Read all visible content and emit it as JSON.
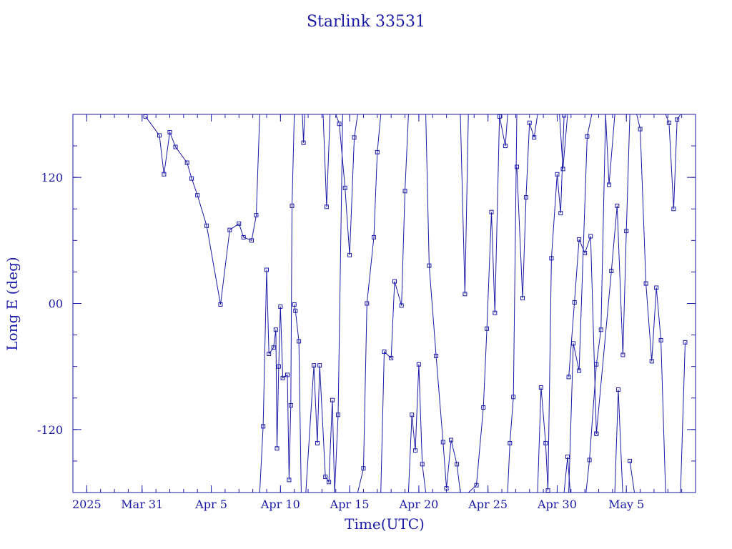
{
  "chart_data": {
    "type": "line",
    "title": "Starlink 33531",
    "xlabel": "Time(UTC)",
    "ylabel": "Long E (deg)",
    "x_unit": "date 2025 (UTC)",
    "xlim": [
      "2025-03-26",
      "2025-05-10"
    ],
    "ylim": [
      -180,
      180
    ],
    "x_tick_labels": [
      {
        "date": "2025-03-27",
        "label": "2025"
      },
      {
        "date": "2025-03-31",
        "label": "Mar 31"
      },
      {
        "date": "2025-04-05",
        "label": "Apr  5"
      },
      {
        "date": "2025-04-10",
        "label": "Apr 10"
      },
      {
        "date": "2025-04-15",
        "label": "Apr 15"
      },
      {
        "date": "2025-04-20",
        "label": "Apr 20"
      },
      {
        "date": "2025-04-25",
        "label": "Apr 25"
      },
      {
        "date": "2025-04-30",
        "label": "Apr 30"
      },
      {
        "date": "2025-05-05",
        "label": "May  5"
      }
    ],
    "y_tick_labels": [
      {
        "value": 120,
        "label": "120"
      },
      {
        "value": 0,
        "label": "00"
      },
      {
        "value": -120,
        "label": "-120"
      }
    ],
    "grid": false,
    "line_color": "#1a1aa6",
    "series": [
      {
        "points": [
          [
            "2025-03-31T06:00",
            178
          ],
          [
            "2025-04-01T06:00",
            160
          ],
          [
            "2025-04-01T14:00",
            123
          ],
          [
            "2025-04-02T00:00",
            163
          ],
          [
            "2025-04-02T10:00",
            149
          ],
          [
            "2025-04-03T06:00",
            134
          ],
          [
            "2025-04-03T14:00",
            119
          ],
          [
            "2025-04-04T00:00",
            103
          ],
          [
            "2025-04-04T16:00",
            74
          ],
          [
            "2025-04-05T16:00",
            -1
          ],
          [
            "2025-04-06T08:00",
            70
          ],
          [
            "2025-04-07T00:00",
            76
          ],
          [
            "2025-04-07T08:00",
            63
          ],
          [
            "2025-04-07T22:00",
            60
          ],
          [
            "2025-04-08T06:00",
            84
          ],
          [
            "2025-04-08T12:00",
            180
          ]
        ]
      },
      {
        "points": [
          [
            "2025-04-08T12:00",
            -180
          ],
          [
            "2025-04-08T18:00",
            -117
          ],
          [
            "2025-04-09T00:00",
            32
          ],
          [
            "2025-04-09T04:00",
            -48
          ],
          [
            "2025-04-09T12:00",
            -42
          ],
          [
            "2025-04-09T16:00",
            -25
          ],
          [
            "2025-04-09T18:00",
            -138
          ],
          [
            "2025-04-09T21:00",
            -60
          ],
          [
            "2025-04-10T00:00",
            -3
          ],
          [
            "2025-04-10T04:00",
            -71
          ],
          [
            "2025-04-10T12:00",
            -68
          ],
          [
            "2025-04-10T15:00",
            -168
          ],
          [
            "2025-04-10T18:00",
            -97
          ],
          [
            "2025-04-10T20:00",
            93
          ],
          [
            "2025-04-11T00:00",
            180
          ]
        ]
      },
      {
        "points": [
          [
            "2025-04-11T00:00",
            -1
          ],
          [
            "2025-04-11T02:00",
            -7
          ],
          [
            "2025-04-11T08:00",
            -36
          ],
          [
            "2025-04-11T12:00",
            -180
          ]
        ]
      },
      {
        "points": [
          [
            "2025-04-11T14:00",
            180
          ],
          [
            "2025-04-11T16:00",
            153
          ],
          [
            "2025-04-11T18:00",
            180
          ]
        ]
      },
      {
        "points": [
          [
            "2025-04-11T20:00",
            -180
          ],
          [
            "2025-04-12T10:00",
            -59
          ],
          [
            "2025-04-12T16:00",
            -133
          ],
          [
            "2025-04-12T20:00",
            -59
          ],
          [
            "2025-04-13T06:00",
            -165
          ],
          [
            "2025-04-13T12:00",
            -170
          ],
          [
            "2025-04-13T18:00",
            -92
          ],
          [
            "2025-04-13T22:00",
            -180
          ]
        ]
      },
      {
        "points": [
          [
            "2025-04-13T02:00",
            180
          ],
          [
            "2025-04-13T08:00",
            92
          ],
          [
            "2025-04-13T14:00",
            180
          ]
        ]
      },
      {
        "points": [
          [
            "2025-04-13T22:00",
            -180
          ],
          [
            "2025-04-14T04:00",
            -106
          ],
          [
            "2025-04-14T12:00",
            180
          ]
        ]
      },
      {
        "points": [
          [
            "2025-04-14T00:00",
            180
          ],
          [
            "2025-04-14T06:00",
            171
          ],
          [
            "2025-04-14T16:00",
            110
          ],
          [
            "2025-04-15T00:00",
            46
          ],
          [
            "2025-04-15T08:00",
            158
          ],
          [
            "2025-04-15T14:00",
            180
          ]
        ]
      },
      {
        "points": [
          [
            "2025-04-15T14:00",
            -180
          ],
          [
            "2025-04-16T00:00",
            -157
          ],
          [
            "2025-04-16T06:00",
            0
          ],
          [
            "2025-04-16T18:00",
            63
          ],
          [
            "2025-04-17T00:00",
            144
          ],
          [
            "2025-04-17T06:00",
            180
          ]
        ]
      },
      {
        "points": [
          [
            "2025-04-17T06:00",
            -180
          ],
          [
            "2025-04-17T12:00",
            -46
          ],
          [
            "2025-04-18T00:00",
            -52
          ],
          [
            "2025-04-18T06:00",
            21
          ],
          [
            "2025-04-18T18:00",
            -2
          ],
          [
            "2025-04-19T00:00",
            107
          ],
          [
            "2025-04-19T06:00",
            180
          ]
        ]
      },
      {
        "points": [
          [
            "2025-04-19T06:00",
            -180
          ],
          [
            "2025-04-19T12:00",
            -106
          ],
          [
            "2025-04-19T18:00",
            -140
          ],
          [
            "2025-04-20T00:00",
            -58
          ],
          [
            "2025-04-20T06:00",
            -153
          ],
          [
            "2025-04-20T12:00",
            -180
          ]
        ]
      },
      {
        "points": [
          [
            "2025-04-20T12:00",
            180
          ],
          [
            "2025-04-20T18:00",
            36
          ],
          [
            "2025-04-21T06:00",
            -50
          ],
          [
            "2025-04-21T18:00",
            -132
          ],
          [
            "2025-04-22T00:00",
            -176
          ],
          [
            "2025-04-22T08:00",
            -130
          ],
          [
            "2025-04-22T18:00",
            -153
          ],
          [
            "2025-04-23T00:00",
            -180
          ]
        ]
      },
      {
        "points": [
          [
            "2025-04-23T00:00",
            180
          ],
          [
            "2025-04-23T08:00",
            9
          ],
          [
            "2025-04-23T14:00",
            180
          ]
        ]
      },
      {
        "points": [
          [
            "2025-04-23T14:00",
            -180
          ],
          [
            "2025-04-24T04:00",
            -173
          ],
          [
            "2025-04-24T16:00",
            -99
          ],
          [
            "2025-04-24T22:00",
            -24
          ],
          [
            "2025-04-25T06:00",
            87
          ],
          [
            "2025-04-25T12:00",
            -9
          ],
          [
            "2025-04-25T20:00",
            180
          ]
        ]
      },
      {
        "points": [
          [
            "2025-04-25T20:00",
            178
          ],
          [
            "2025-04-26T06:00",
            150
          ],
          [
            "2025-04-26T10:00",
            180
          ]
        ]
      },
      {
        "points": [
          [
            "2025-04-26T10:00",
            -180
          ],
          [
            "2025-04-26T14:00",
            -133
          ],
          [
            "2025-04-26T20:00",
            -89
          ],
          [
            "2025-04-27T02:00",
            180
          ]
        ]
      },
      {
        "points": [
          [
            "2025-04-27T02:00",
            130
          ],
          [
            "2025-04-27T12:00",
            5
          ],
          [
            "2025-04-27T18:00",
            101
          ],
          [
            "2025-04-28T00:00",
            172
          ],
          [
            "2025-04-28T08:00",
            158
          ],
          [
            "2025-04-28T14:00",
            180
          ]
        ]
      },
      {
        "points": [
          [
            "2025-04-28T14:00",
            -180
          ],
          [
            "2025-04-28T20:00",
            -80
          ],
          [
            "2025-04-29T04:00",
            -133
          ],
          [
            "2025-04-29T08:00",
            -178
          ],
          [
            "2025-04-29T14:00",
            43
          ],
          [
            "2025-04-30T00:00",
            123
          ],
          [
            "2025-04-30T06:00",
            86
          ],
          [
            "2025-04-30T12:00",
            179
          ]
        ]
      },
      {
        "points": [
          [
            "2025-04-30T12:00",
            -180
          ],
          [
            "2025-04-30T18:00",
            -146
          ],
          [
            "2025-05-01T00:00",
            -189
          ]
        ]
      },
      {
        "points": [
          [
            "2025-04-30T04:00",
            180
          ],
          [
            "2025-04-30T10:00",
            128
          ],
          [
            "2025-04-30T18:00",
            180
          ]
        ]
      },
      {
        "points": [
          [
            "2025-04-30T20:00",
            -180
          ],
          [
            "2025-05-01T04:00",
            -38
          ],
          [
            "2025-05-01T14:00",
            -64
          ],
          [
            "2025-05-02T04:00",
            159
          ],
          [
            "2025-05-02T12:00",
            180
          ]
        ]
      },
      {
        "points": [
          [
            "2025-05-02T02:00",
            -180
          ],
          [
            "2025-05-02T08:00",
            -149
          ],
          [
            "2025-05-02T20:00",
            -58
          ],
          [
            "2025-05-03T04:00",
            -25
          ],
          [
            "2025-05-03T12:00",
            180
          ]
        ]
      },
      {
        "points": [
          [
            "2025-05-03T12:00",
            180
          ],
          [
            "2025-05-03T18:00",
            113
          ],
          [
            "2025-05-04T04:00",
            180
          ]
        ]
      },
      {
        "points": [
          [
            "2025-05-04T04:00",
            -180
          ],
          [
            "2025-05-04T10:00",
            -82
          ],
          [
            "2025-05-04T18:00",
            -185
          ]
        ]
      },
      {
        "points": [
          [
            "2025-04-30T20:00",
            -70
          ],
          [
            "2025-05-01T06:00",
            1
          ],
          [
            "2025-05-01T14:00",
            61
          ],
          [
            "2025-05-02T00:00",
            48
          ],
          [
            "2025-05-02T10:00",
            64
          ],
          [
            "2025-05-02T20:00",
            -124
          ]
        ]
      },
      {
        "points": [
          [
            "2025-05-02T20:00",
            -124
          ],
          [
            "2025-05-03T22:00",
            31
          ],
          [
            "2025-05-04T08:00",
            93
          ],
          [
            "2025-05-04T18:00",
            -49
          ],
          [
            "2025-05-05T00:00",
            69
          ],
          [
            "2025-05-05T06:00",
            180
          ]
        ]
      },
      {
        "points": [
          [
            "2025-05-05T06:00",
            -150
          ],
          [
            "2025-05-05T14:00",
            -180
          ]
        ]
      },
      {
        "points": [
          [
            "2025-05-05T18:00",
            180
          ],
          [
            "2025-05-06T00:00",
            166
          ],
          [
            "2025-05-06T10:00",
            19
          ],
          [
            "2025-05-06T20:00",
            -55
          ],
          [
            "2025-05-07T04:00",
            15
          ],
          [
            "2025-05-07T12:00",
            -35
          ],
          [
            "2025-05-07T20:00",
            -180
          ]
        ]
      },
      {
        "points": [
          [
            "2025-05-07T20:00",
            180
          ],
          [
            "2025-05-08T02:00",
            172
          ],
          [
            "2025-05-08T10:00",
            90
          ],
          [
            "2025-05-08T16:00",
            175
          ],
          [
            "2025-05-08T22:00",
            180
          ]
        ]
      },
      {
        "points": [
          [
            "2025-05-08T22:00",
            -180
          ],
          [
            "2025-05-09T06:00",
            -37
          ]
        ]
      }
    ]
  }
}
